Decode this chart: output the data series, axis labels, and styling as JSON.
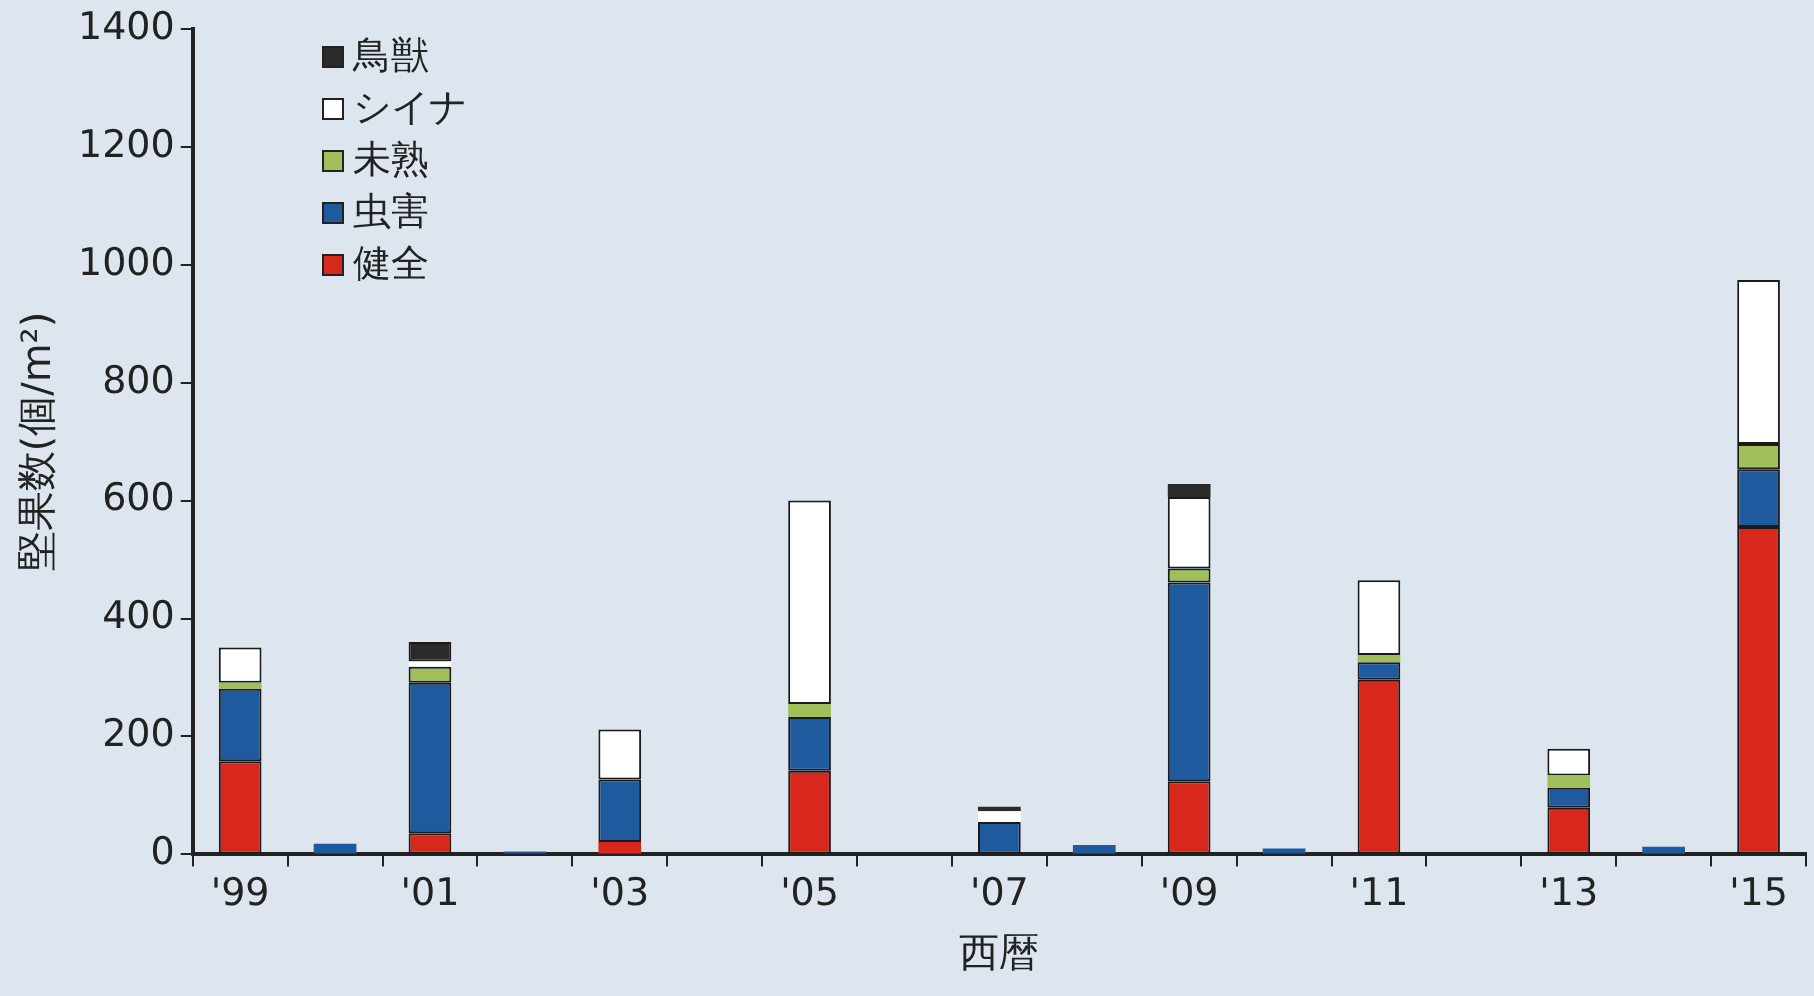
{
  "chart_data": {
    "type": "bar",
    "stacked": true,
    "xlabel": "西暦",
    "ylabel": "堅果数(個/m²)",
    "categories": [
      "'99",
      null,
      "'01",
      null,
      "'03",
      null,
      "'05",
      null,
      "'07",
      null,
      "'09",
      null,
      "'11",
      null,
      "'13",
      null,
      "'15"
    ],
    "series": [
      {
        "name": "健全",
        "color": "#d8281e",
        "values": [
          158,
          null,
          36,
          null,
          21,
          null,
          142,
          null,
          null,
          null,
          124,
          null,
          296,
          null,
          79,
          null,
          555
        ]
      },
      {
        "name": "虫害",
        "color": "#1f5a9e",
        "values": [
          123,
          18,
          255,
          5,
          106,
          null,
          91,
          null,
          55,
          16,
          337,
          10,
          30,
          null,
          34,
          13,
          98
        ]
      },
      {
        "name": "未熟",
        "color": "#9fbf5a",
        "values": [
          10,
          null,
          27,
          null,
          null,
          null,
          22,
          null,
          null,
          null,
          24,
          null,
          12,
          null,
          21,
          null,
          43
        ]
      },
      {
        "name": "シイナ",
        "color": "#ffffff",
        "values": [
          60,
          null,
          9,
          null,
          85,
          null,
          345,
          null,
          18,
          null,
          121,
          null,
          127,
          null,
          45,
          null,
          278
        ]
      },
      {
        "name": "鳥獣",
        "color": "#2a2a2a",
        "values": [
          null,
          null,
          33,
          null,
          null,
          null,
          null,
          null,
          8,
          null,
          22,
          null,
          null,
          null,
          null,
          null,
          null
        ]
      }
    ],
    "ylim": [
      0,
      1400
    ],
    "yticks": [
      0,
      200,
      400,
      600,
      800,
      1000,
      1200,
      1400
    ],
    "grid": false,
    "legend": "top left"
  }
}
